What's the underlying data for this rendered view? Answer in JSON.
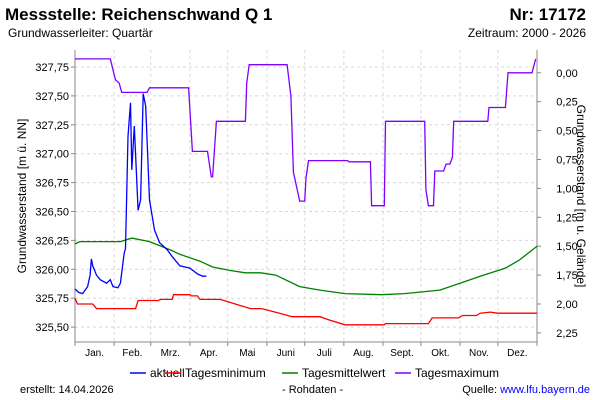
{
  "header": {
    "title": "Messstelle: Reichenschwand Q 1",
    "number": "Nr: 17172",
    "aquifer": "Grundwasserleiter: Quartär",
    "period": "Zeitraum: 2000 - 2026"
  },
  "footer": {
    "created": "erstellt:  14.04.2026",
    "raw": "- Rohdaten -",
    "source_label": "Quelle: ",
    "source_link": "www.lfu.bayern.de"
  },
  "colors": {
    "aktuell": "#0000ff",
    "min": "#ff0000",
    "mean": "#008000",
    "max": "#8000ff",
    "grid": "#d8d8d8",
    "link": "#0000ff"
  },
  "chart_data": {
    "type": "line",
    "ylabel": "Grundwasserstand [m ü. NN]",
    "y2label": "Grundwasserstand [m u. Gelände]",
    "ylim": [
      325.4,
      327.9
    ],
    "yticks": [
      "325,50",
      "325,75",
      "326,00",
      "326,25",
      "326,50",
      "326,75",
      "327,00",
      "327,25",
      "327,50",
      "327,75"
    ],
    "ytick_values": [
      325.5,
      325.75,
      326.0,
      326.25,
      326.5,
      326.75,
      327.0,
      327.25,
      327.5,
      327.75
    ],
    "ground_level": 327.7,
    "y2ticks": [
      "0,00",
      "0,25",
      "0,50",
      "0,75",
      "1,00",
      "1,25",
      "1,50",
      "1,75",
      "2,00",
      "2,25"
    ],
    "y2tick_values": [
      0,
      0.25,
      0.5,
      0.75,
      1.0,
      1.25,
      1.5,
      1.75,
      2.0,
      2.25
    ],
    "xlim_days": [
      0,
      366
    ],
    "months": [
      "Jan.",
      "Feb.",
      "Mrz.",
      "Apr.",
      "Mai",
      "Juni",
      "Juli",
      "Aug.",
      "Sept.",
      "Okt.",
      "Nov.",
      "Dez."
    ],
    "month_starts": [
      0,
      31,
      60,
      91,
      121,
      152,
      182,
      213,
      244,
      274,
      305,
      335,
      366
    ],
    "grid": true,
    "legend_position": "bottom",
    "series": [
      {
        "key": "aktuell",
        "name": "aktuell",
        "points": [
          [
            0,
            325.83
          ],
          [
            3,
            325.8
          ],
          [
            6,
            325.79
          ],
          [
            8,
            325.82
          ],
          [
            10,
            325.85
          ],
          [
            12,
            325.95
          ],
          [
            13,
            326.09
          ],
          [
            14,
            326.03
          ],
          [
            17,
            325.95
          ],
          [
            20,
            325.91
          ],
          [
            25,
            325.88
          ],
          [
            28,
            325.91
          ],
          [
            30,
            325.85
          ],
          [
            34,
            325.84
          ],
          [
            36,
            325.88
          ],
          [
            39,
            326.14
          ],
          [
            40,
            326.18
          ],
          [
            42,
            327.15
          ],
          [
            44,
            327.44
          ],
          [
            45,
            326.86
          ],
          [
            47,
            327.24
          ],
          [
            50,
            326.51
          ],
          [
            52,
            326.6
          ],
          [
            54,
            327.52
          ],
          [
            56,
            327.41
          ],
          [
            59,
            326.6
          ],
          [
            63,
            326.34
          ],
          [
            67,
            326.23
          ],
          [
            73,
            326.17
          ],
          [
            77,
            326.11
          ],
          [
            83,
            326.03
          ],
          [
            91,
            326.01
          ],
          [
            97,
            325.96
          ],
          [
            101,
            325.94
          ],
          [
            104,
            325.94
          ]
        ]
      },
      {
        "key": "min",
        "name": "Tagesminimum",
        "points": [
          [
            0,
            325.75
          ],
          [
            2,
            325.7
          ],
          [
            14,
            325.7
          ],
          [
            17,
            325.66
          ],
          [
            48,
            325.66
          ],
          [
            50,
            325.73
          ],
          [
            66,
            325.73
          ],
          [
            68,
            325.74
          ],
          [
            77,
            325.74
          ],
          [
            78,
            325.78
          ],
          [
            91,
            325.78
          ],
          [
            92,
            325.77
          ],
          [
            97,
            325.77
          ],
          [
            99,
            325.74
          ],
          [
            115,
            325.74
          ],
          [
            127,
            325.7
          ],
          [
            139,
            325.66
          ],
          [
            148,
            325.66
          ],
          [
            162,
            325.62
          ],
          [
            172,
            325.59
          ],
          [
            194,
            325.59
          ],
          [
            202,
            325.56
          ],
          [
            214,
            325.52
          ],
          [
            245,
            325.52
          ],
          [
            246,
            325.53
          ],
          [
            280,
            325.53
          ],
          [
            283,
            325.58
          ],
          [
            304,
            325.58
          ],
          [
            307,
            325.6
          ],
          [
            318,
            325.6
          ],
          [
            321,
            325.62
          ],
          [
            329,
            325.63
          ],
          [
            335,
            325.62
          ],
          [
            366,
            325.62
          ]
        ]
      },
      {
        "key": "mean",
        "name": "Tagesmittelwert",
        "points": [
          [
            0,
            326.22
          ],
          [
            4,
            326.24
          ],
          [
            36,
            326.24
          ],
          [
            45,
            326.27
          ],
          [
            59,
            326.24
          ],
          [
            75,
            326.17
          ],
          [
            83,
            326.13
          ],
          [
            99,
            326.07
          ],
          [
            109,
            326.02
          ],
          [
            123,
            325.99
          ],
          [
            135,
            325.97
          ],
          [
            147,
            325.97
          ],
          [
            159,
            325.95
          ],
          [
            178,
            325.85
          ],
          [
            194,
            325.82
          ],
          [
            214,
            325.79
          ],
          [
            243,
            325.78
          ],
          [
            261,
            325.79
          ],
          [
            289,
            325.82
          ],
          [
            305,
            325.88
          ],
          [
            321,
            325.94
          ],
          [
            341,
            326.01
          ],
          [
            352,
            326.08
          ],
          [
            366,
            326.2
          ]
        ]
      },
      {
        "key": "max",
        "name": "Tagesmaximum",
        "points": [
          [
            0,
            327.82
          ],
          [
            28,
            327.82
          ],
          [
            32,
            327.64
          ],
          [
            35,
            327.61
          ],
          [
            37,
            327.53
          ],
          [
            57,
            327.53
          ],
          [
            59,
            327.57
          ],
          [
            90,
            327.57
          ],
          [
            93,
            327.02
          ],
          [
            105,
            327.02
          ],
          [
            108,
            326.8
          ],
          [
            109,
            326.8
          ],
          [
            112,
            327.28
          ],
          [
            135,
            327.28
          ],
          [
            136,
            327.61
          ],
          [
            138,
            327.77
          ],
          [
            168,
            327.77
          ],
          [
            171,
            327.5
          ],
          [
            173,
            326.84
          ],
          [
            178,
            326.59
          ],
          [
            182,
            326.59
          ],
          [
            183,
            326.79
          ],
          [
            185,
            326.94
          ],
          [
            216,
            326.94
          ],
          [
            217,
            326.93
          ],
          [
            234,
            326.93
          ],
          [
            235,
            326.55
          ],
          [
            245,
            326.55
          ],
          [
            246,
            327.28
          ],
          [
            277,
            327.28
          ],
          [
            278,
            326.69
          ],
          [
            280,
            326.55
          ],
          [
            284,
            326.55
          ],
          [
            285,
            326.85
          ],
          [
            292,
            326.85
          ],
          [
            294,
            326.91
          ],
          [
            297,
            326.91
          ],
          [
            299,
            326.97
          ],
          [
            300,
            327.28
          ],
          [
            327,
            327.28
          ],
          [
            328,
            327.4
          ],
          [
            341,
            327.4
          ],
          [
            343,
            327.7
          ],
          [
            362,
            327.7
          ],
          [
            365,
            327.82
          ]
        ]
      }
    ]
  }
}
